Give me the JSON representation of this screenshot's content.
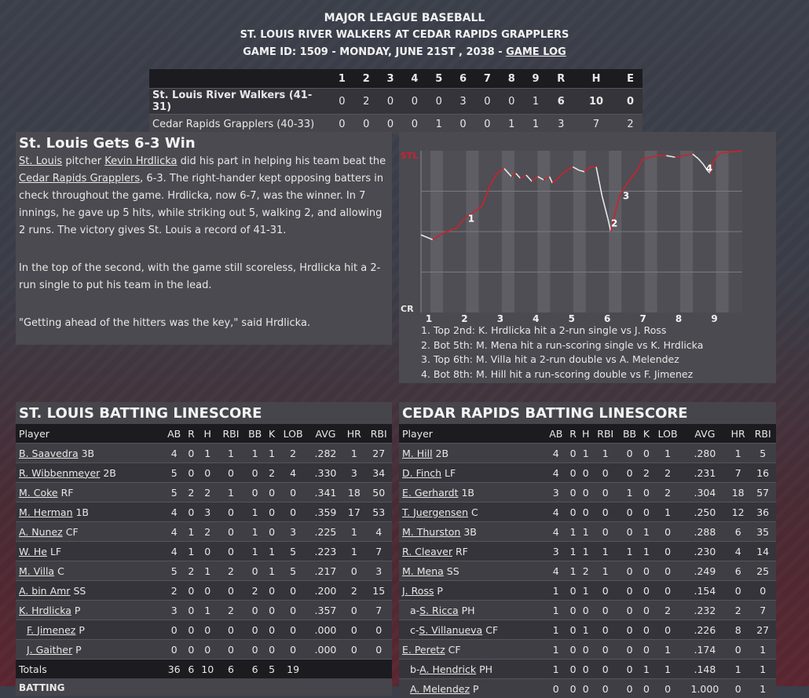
{
  "header": {
    "line1": "MAJOR LEAGUE BASEBALL",
    "line2": "ST. LOUIS RIVER WALKERS AT CEDAR RAPIDS GRAPPLERS",
    "line3": "GAME ID: 1509 - MONDAY, JUNE 21ST , 2038 - ",
    "game_log_link": "GAME LOG"
  },
  "linescore": {
    "columns": [
      "1",
      "2",
      "3",
      "4",
      "5",
      "6",
      "7",
      "8",
      "9",
      "R",
      "H",
      "E"
    ],
    "teams": [
      {
        "name": "St. Louis River Walkers (41-31)",
        "innings": [
          "0",
          "2",
          "0",
          "0",
          "0",
          "3",
          "0",
          "0",
          "1"
        ],
        "r": "6",
        "h": "10",
        "e": "0"
      },
      {
        "name": "Cedar Rapids Grapplers (40-33)",
        "innings": [
          "0",
          "0",
          "0",
          "0",
          "1",
          "0",
          "0",
          "1",
          "1"
        ],
        "r": "3",
        "h": "7",
        "e": "2"
      }
    ]
  },
  "story": {
    "headline": "St. Louis Gets 6-3 Win",
    "p1_team": "St. Louis",
    "p1_a": " pitcher ",
    "p1_pitcher": "Kevin Hrdlicka",
    "p1_b": " did his part in helping his team beat the ",
    "p1_opp": "Cedar Rapids Grapplers",
    "p1_c": ", 6-3. The right-hander kept opposing batters in check throughout the game. Hrdlicka, now 6-7, was the winner. In 7 innings, he gave up 5 hits, while striking out 5, walking 2, and allowing 2 runs. The victory gives St. Louis a record of 41-31.",
    "p2": "In the top of the second, with the game still scoreless, Hrdlicka hit a 2-run single to put his team in the lead.",
    "p3": "\"Getting ahead of the hitters was the key,\" said Hrdlicka."
  },
  "win_prob": {
    "top_label": "STL",
    "bottom_label": "CR",
    "innings": [
      "1",
      "2",
      "3",
      "4",
      "5",
      "6",
      "7",
      "8",
      "9"
    ],
    "markers": [
      "1",
      "2",
      "3",
      "4"
    ],
    "points": [
      [
        0,
        0.48
      ],
      [
        0.08,
        0.45
      ],
      [
        0.15,
        0.49
      ],
      [
        0.24,
        0.52
      ],
      [
        0.3,
        0.58
      ],
      [
        0.36,
        0.62
      ],
      [
        0.42,
        0.66
      ],
      [
        0.47,
        0.78
      ],
      [
        0.52,
        0.86
      ],
      [
        0.57,
        0.89
      ],
      [
        0.62,
        0.84
      ],
      [
        0.65,
        0.86
      ],
      [
        0.68,
        0.83
      ],
      [
        0.72,
        0.85
      ],
      [
        0.76,
        0.81
      ],
      [
        0.8,
        0.84
      ],
      [
        0.84,
        0.82
      ],
      [
        0.88,
        0.84
      ],
      [
        0.9,
        0.8
      ],
      [
        0.93,
        0.82
      ],
      [
        0.96,
        0.85
      ],
      [
        1.0,
        0.88
      ],
      [
        1.04,
        0.9
      ],
      [
        1.08,
        0.88
      ],
      [
        1.12,
        0.87
      ],
      [
        1.16,
        0.9
      ],
      [
        1.2,
        0.9
      ],
      [
        1.24,
        0.72
      ],
      [
        1.28,
        0.58
      ],
      [
        1.3,
        0.5
      ],
      [
        1.33,
        0.62
      ],
      [
        1.36,
        0.72
      ],
      [
        1.4,
        0.78
      ],
      [
        1.44,
        0.83
      ],
      [
        1.48,
        0.88
      ],
      [
        1.52,
        0.95
      ],
      [
        1.58,
        0.96
      ],
      [
        1.62,
        0.97
      ],
      [
        1.68,
        0.97
      ],
      [
        1.74,
        0.96
      ],
      [
        1.8,
        0.97
      ],
      [
        1.86,
        0.98
      ],
      [
        1.9,
        0.95
      ],
      [
        1.93,
        0.92
      ],
      [
        1.96,
        0.88
      ],
      [
        1.98,
        0.86
      ],
      [
        2.0,
        0.93
      ],
      [
        2.04,
        0.98
      ],
      [
        2.08,
        0.99
      ],
      [
        2.14,
        0.995
      ],
      [
        2.2,
        1.0
      ]
    ],
    "notes": [
      "1. Top 2nd: K. Hrdlicka hit a 2-run single vs J. Ross",
      "2. Bot 5th: M. Mena hit a run-scoring single vs K. Hrdlicka",
      "3. Top 6th: M. Villa hit a 2-run double vs A. Melendez",
      "4. Bot 8th: M. Hill hit a run-scoring double vs F. Jimenez"
    ]
  },
  "batting_columns": [
    "Player",
    "AB",
    "R",
    "H",
    "RBI",
    "BB",
    "K",
    "LOB",
    "AVG",
    "HR",
    "RBI"
  ],
  "stl_batting": {
    "title": "ST. LOUIS BATTING LINESCORE",
    "rows": [
      {
        "pre": "",
        "name": "B. Saavedra",
        "pos": "3B",
        "stats": [
          "4",
          "0",
          "1",
          "1",
          "1",
          "1",
          "2",
          ".282",
          "1",
          "27"
        ]
      },
      {
        "pre": "",
        "name": "R. Wibbenmeyer",
        "pos": "2B",
        "stats": [
          "5",
          "0",
          "0",
          "0",
          "0",
          "2",
          "4",
          ".330",
          "3",
          "34"
        ]
      },
      {
        "pre": "",
        "name": "M. Coke",
        "pos": "RF",
        "stats": [
          "5",
          "2",
          "2",
          "1",
          "0",
          "0",
          "0",
          ".341",
          "18",
          "50"
        ]
      },
      {
        "pre": "",
        "name": "M. Herman",
        "pos": "1B",
        "stats": [
          "4",
          "0",
          "3",
          "0",
          "1",
          "0",
          "0",
          ".359",
          "17",
          "53"
        ]
      },
      {
        "pre": "",
        "name": "A. Nunez",
        "pos": "CF",
        "stats": [
          "4",
          "1",
          "2",
          "0",
          "1",
          "0",
          "3",
          ".225",
          "1",
          "4"
        ]
      },
      {
        "pre": "",
        "name": "W. He",
        "pos": "LF",
        "stats": [
          "4",
          "1",
          "0",
          "0",
          "1",
          "1",
          "5",
          ".223",
          "1",
          "7"
        ]
      },
      {
        "pre": "",
        "name": "M. Villa",
        "pos": "C",
        "stats": [
          "5",
          "2",
          "1",
          "2",
          "0",
          "1",
          "5",
          ".217",
          "0",
          "3"
        ]
      },
      {
        "pre": "",
        "name": "A. bin Amr",
        "pos": "SS",
        "stats": [
          "2",
          "0",
          "0",
          "0",
          "2",
          "0",
          "0",
          ".200",
          "2",
          "15"
        ]
      },
      {
        "pre": "",
        "name": "K. Hrdlicka",
        "pos": "P",
        "stats": [
          "3",
          "0",
          "1",
          "2",
          "0",
          "0",
          "0",
          ".357",
          "0",
          "7"
        ]
      },
      {
        "pre": "",
        "name": "F. Jimenez",
        "pos": "P",
        "indent": true,
        "stats": [
          "0",
          "0",
          "0",
          "0",
          "0",
          "0",
          "0",
          ".000",
          "0",
          "0"
        ]
      },
      {
        "pre": "",
        "name": "J. Gaither",
        "pos": "P",
        "indent": true,
        "stats": [
          "0",
          "0",
          "0",
          "0",
          "0",
          "0",
          "0",
          ".000",
          "0",
          "0"
        ]
      }
    ],
    "totals": {
      "label": "Totals",
      "stats": [
        "36",
        "6",
        "10",
        "6",
        "6",
        "5",
        "19",
        "",
        "",
        ""
      ]
    },
    "footer": "BATTING"
  },
  "cr_batting": {
    "title": "CEDAR RAPIDS BATTING LINESCORE",
    "rows": [
      {
        "pre": "",
        "name": "M. Hill",
        "pos": "2B",
        "stats": [
          "4",
          "0",
          "1",
          "1",
          "0",
          "0",
          "1",
          ".280",
          "1",
          "5"
        ]
      },
      {
        "pre": "",
        "name": "D. Finch",
        "pos": "LF",
        "stats": [
          "4",
          "0",
          "0",
          "0",
          "0",
          "2",
          "2",
          ".231",
          "7",
          "16"
        ]
      },
      {
        "pre": "",
        "name": "E. Gerhardt",
        "pos": "1B",
        "stats": [
          "3",
          "0",
          "0",
          "0",
          "1",
          "0",
          "2",
          ".304",
          "18",
          "57"
        ]
      },
      {
        "pre": "",
        "name": "T. Juergensen",
        "pos": "C",
        "stats": [
          "4",
          "0",
          "0",
          "0",
          "0",
          "0",
          "1",
          ".250",
          "12",
          "36"
        ]
      },
      {
        "pre": "",
        "name": "M. Thurston",
        "pos": "3B",
        "stats": [
          "4",
          "1",
          "1",
          "0",
          "0",
          "1",
          "0",
          ".288",
          "6",
          "35"
        ]
      },
      {
        "pre": "",
        "name": "R. Cleaver",
        "pos": "RF",
        "stats": [
          "3",
          "1",
          "1",
          "1",
          "1",
          "1",
          "0",
          ".230",
          "4",
          "14"
        ]
      },
      {
        "pre": "",
        "name": "M. Mena",
        "pos": "SS",
        "stats": [
          "4",
          "1",
          "2",
          "1",
          "0",
          "0",
          "0",
          ".249",
          "6",
          "25"
        ]
      },
      {
        "pre": "",
        "name": "J. Ross",
        "pos": "P",
        "stats": [
          "1",
          "0",
          "1",
          "0",
          "0",
          "0",
          "0",
          ".154",
          "0",
          "0"
        ]
      },
      {
        "pre": "a-",
        "name": "S. Ricca",
        "pos": "PH",
        "indent": true,
        "stats": [
          "1",
          "0",
          "0",
          "0",
          "0",
          "0",
          "2",
          ".232",
          "2",
          "7"
        ]
      },
      {
        "pre": "c-",
        "name": "S. Villanueva",
        "pos": "CF",
        "indent": true,
        "stats": [
          "1",
          "0",
          "1",
          "0",
          "0",
          "0",
          "0",
          ".226",
          "8",
          "27"
        ]
      },
      {
        "pre": "",
        "name": "E. Peretz",
        "pos": "CF",
        "stats": [
          "1",
          "0",
          "0",
          "0",
          "0",
          "0",
          "1",
          ".174",
          "0",
          "1"
        ]
      },
      {
        "pre": "b-",
        "name": "A. Hendrick",
        "pos": "PH",
        "indent": true,
        "stats": [
          "1",
          "0",
          "0",
          "0",
          "0",
          "1",
          "1",
          ".148",
          "1",
          "1"
        ]
      },
      {
        "pre": "",
        "name": "A. Melendez",
        "pos": "P",
        "indent": true,
        "stats": [
          "0",
          "0",
          "0",
          "0",
          "0",
          "0",
          "0",
          "1.000",
          "0",
          "1"
        ]
      }
    ]
  },
  "colors": {
    "stl": "#d0212b",
    "cr": "#e8e8e8"
  }
}
